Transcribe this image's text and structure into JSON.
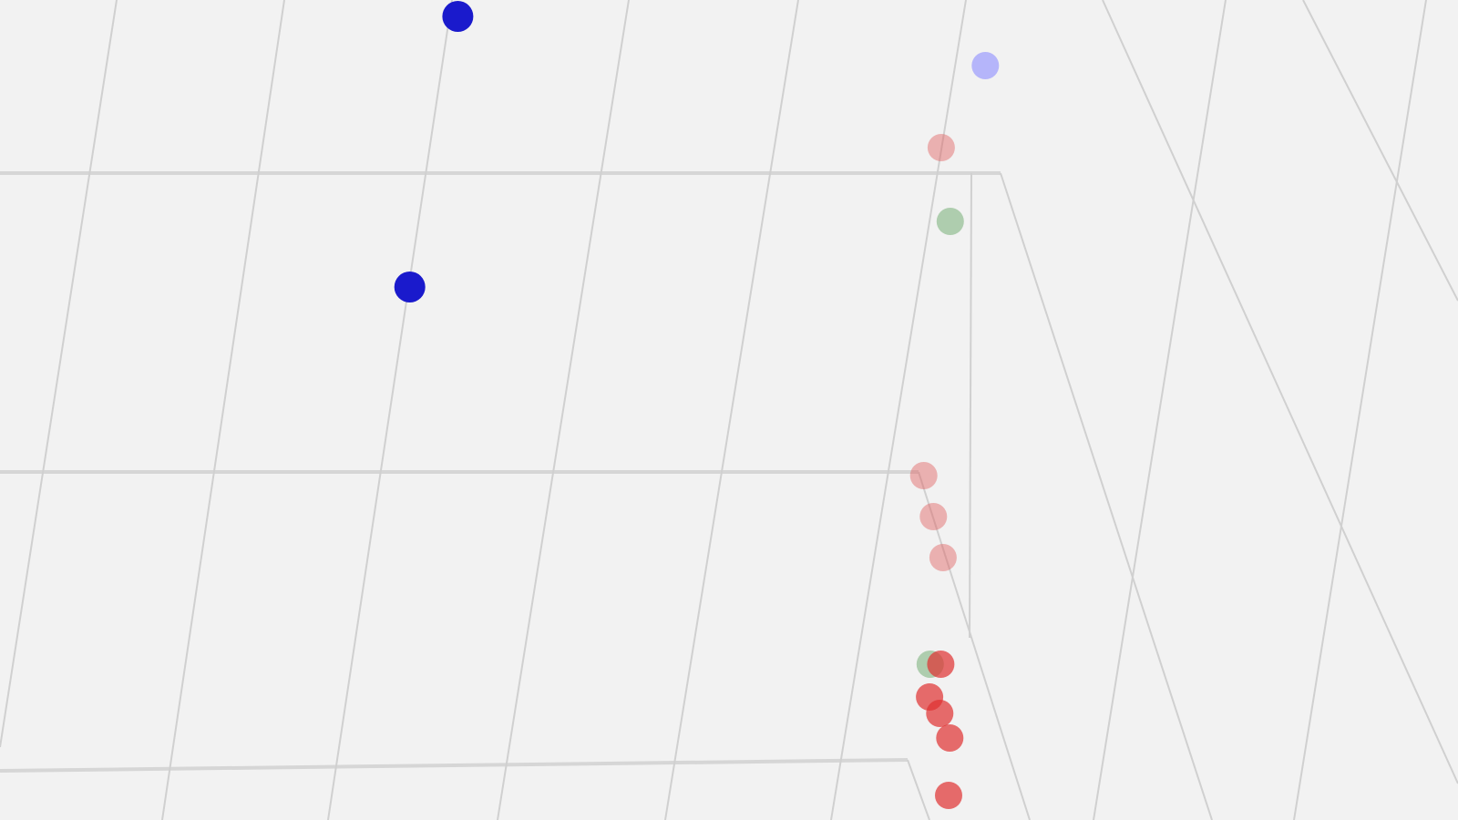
{
  "chart_data": {
    "type": "scatter",
    "projection": "3d",
    "title": "",
    "grid": true,
    "background": "#f2f2f2",
    "gridline_color": "#d0d0d0",
    "series": [
      {
        "color": "#1a1acc",
        "opacity": 1.0,
        "points": [
          {
            "x": 0.42,
            "y": 0.98,
            "z": 0.7
          },
          {
            "x": 0.38,
            "y": 0.65,
            "z": 0.7
          }
        ]
      },
      {
        "color": "#8c8cff",
        "opacity": 0.6,
        "points": [
          {
            "x": 0.92,
            "y": 0.92,
            "z": 0.55
          }
        ]
      },
      {
        "color": "#e06060",
        "opacity": 0.45,
        "points": [
          {
            "x": 0.88,
            "y": 0.82,
            "z": 0.55
          },
          {
            "x": 0.87,
            "y": 0.42,
            "z": 0.55
          },
          {
            "x": 0.88,
            "y": 0.37,
            "z": 0.55
          },
          {
            "x": 0.89,
            "y": 0.32,
            "z": 0.55
          }
        ]
      },
      {
        "color": "#6aa86a",
        "opacity": 0.5,
        "points": [
          {
            "x": 0.89,
            "y": 0.73,
            "z": 0.55
          },
          {
            "x": 0.88,
            "y": 0.19,
            "z": 0.55
          }
        ]
      },
      {
        "color": "#e03030",
        "opacity": 0.7,
        "points": [
          {
            "x": 0.89,
            "y": 0.19,
            "z": 0.55
          },
          {
            "x": 0.88,
            "y": 0.15,
            "z": 0.55
          },
          {
            "x": 0.89,
            "y": 0.13,
            "z": 0.55
          },
          {
            "x": 0.9,
            "y": 0.1,
            "z": 0.55
          },
          {
            "x": 0.9,
            "y": 0.03,
            "z": 0.55
          }
        ]
      }
    ]
  }
}
